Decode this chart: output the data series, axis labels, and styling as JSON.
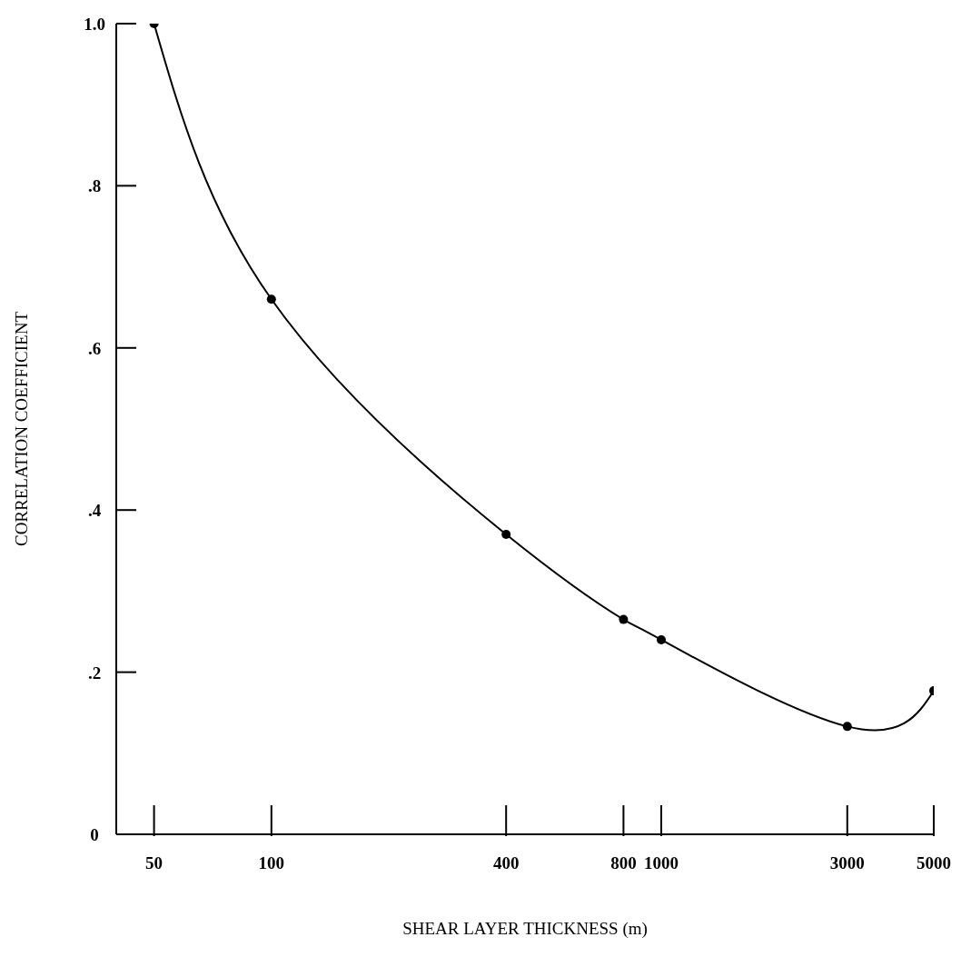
{
  "chart_data": {
    "type": "line",
    "xlabel": "SHEAR LAYER THICKNESS (m)",
    "ylabel": "CORRELATION COEFFICIENT",
    "x": [
      50,
      100,
      400,
      800,
      1000,
      3000,
      5000
    ],
    "series": [
      {
        "color": "#000000",
        "values": [
          1.0,
          0.66,
          0.37,
          0.265,
          0.24,
          0.133,
          0.177
        ]
      }
    ],
    "log": "x",
    "xlim": [
      40,
      5000
    ],
    "xticks": [
      50,
      100,
      400,
      800,
      1000,
      3000,
      5000
    ],
    "ylim": [
      0,
      1
    ],
    "yticks": [
      {
        "value": 0,
        "label": "0"
      },
      {
        "value": 0.2,
        "label": ".2"
      },
      {
        "value": 0.4,
        "label": ".4"
      },
      {
        "value": 0.6,
        "label": ".6"
      },
      {
        "value": 0.8,
        "label": ".8"
      },
      {
        "value": 1,
        "label": "1.0"
      }
    ],
    "grid": false,
    "legend": false,
    "marker": "circle",
    "line_style": "solid"
  }
}
